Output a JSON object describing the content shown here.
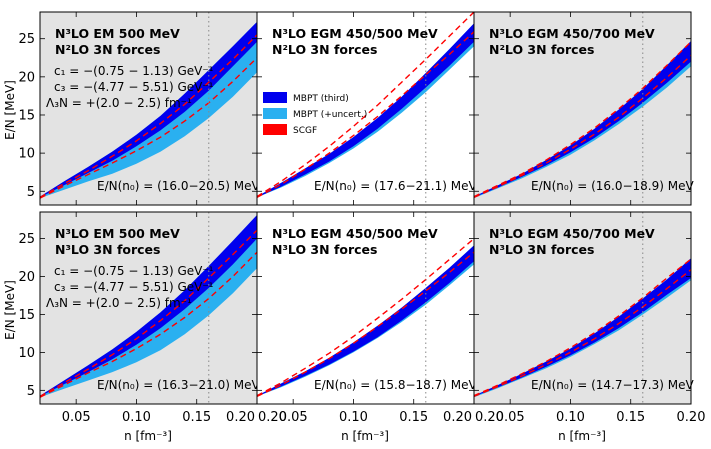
{
  "chart_data": {
    "type": "area",
    "xlabel": "n [fm⁻³]",
    "ylabel": "E/N [MeV]",
    "xlim": [
      0.02,
      0.2
    ],
    "ylim": [
      3.2,
      28.5
    ],
    "x_ticks": [
      "0.05",
      "0.10",
      "0.15",
      "0.20"
    ],
    "x_ticks_first_col": [
      "0.05",
      "0.10",
      "0.15",
      "0.20"
    ],
    "y_ticks": [
      "5",
      "10",
      "15",
      "20",
      "25"
    ],
    "saturation_density_line": 0.16,
    "colors": {
      "mbpt_third": "#0000ee",
      "mbpt_uncert": "#2ab0f0",
      "scgf": "#ff0000",
      "nonfit_bg": "#e3e3e3",
      "fit_bg": "#ffffff"
    },
    "legend": [
      "MBPT (third)",
      "MBPT (+uncert.)",
      "SCGF"
    ],
    "coupling_notes": [
      "c₁ = −(0.75 − 1.13) GeV⁻¹",
      "c₃ = −(4.77 − 5.51) GeV⁻¹",
      "Λ₃N = +(2.0 − 2.5) fm⁻¹"
    ],
    "x": [
      0.02,
      0.04,
      0.06,
      0.08,
      0.1,
      0.12,
      0.14,
      0.16,
      0.18,
      0.2
    ],
    "panels": [
      {
        "title1": "N³LO EM 500 MeV",
        "title2": "N²LO 3N forces",
        "shaded": true,
        "show_couplings": true,
        "show_legend": false,
        "annotation": "E/N(n₀) = (16.0−20.5) MeV",
        "third_lo": [
          4.2,
          5.8,
          7.4,
          9.0,
          10.9,
          13.0,
          15.4,
          18.2,
          21.4,
          24.6
        ],
        "third_hi": [
          4.3,
          6.3,
          8.2,
          10.2,
          12.4,
          14.9,
          17.8,
          20.9,
          24.0,
          27.2
        ],
        "uncert_lo": [
          4.1,
          5.2,
          6.3,
          7.3,
          8.6,
          10.2,
          12.2,
          14.6,
          17.4,
          20.6
        ],
        "uncert_hi": [
          4.3,
          6.3,
          8.2,
          10.2,
          12.4,
          14.9,
          17.8,
          20.9,
          24.0,
          27.2
        ],
        "scgf": [
          [
            4.1,
            5.7,
            7.2,
            8.7,
            10.3,
            12.1,
            14.2,
            16.6,
            19.4,
            22.5
          ],
          [
            4.2,
            6.0,
            7.7,
            9.6,
            11.6,
            13.9,
            16.4,
            19.3,
            22.3,
            25.5
          ]
        ]
      },
      {
        "title1": "N³LO EGM 450/500 MeV",
        "title2": "N²LO 3N forces",
        "shaded": false,
        "show_couplings": false,
        "show_legend": true,
        "annotation": "E/N(n₀) = (17.6−21.1) MeV",
        "third_lo": [
          4.2,
          5.6,
          7.2,
          8.9,
          10.9,
          13.2,
          15.8,
          18.6,
          21.5,
          24.6
        ],
        "third_hi": [
          4.3,
          6.1,
          8.0,
          9.9,
          12.1,
          14.6,
          17.4,
          20.5,
          23.7,
          27.0
        ],
        "uncert_lo": [
          4.2,
          5.5,
          7.0,
          8.7,
          10.6,
          12.8,
          15.3,
          18.0,
          21.0,
          24.0
        ],
        "uncert_hi": [
          4.3,
          6.1,
          8.0,
          9.9,
          12.1,
          14.6,
          17.4,
          20.5,
          23.7,
          27.0
        ],
        "scgf": [
          [
            4.2,
            5.9,
            7.9,
            10.0,
            12.3,
            14.8,
            17.5,
            20.3,
            23.0,
            25.9
          ],
          [
            4.3,
            6.3,
            8.5,
            10.9,
            13.5,
            16.3,
            19.3,
            22.3,
            25.4,
            28.5
          ]
        ]
      },
      {
        "title1": "N³LO EGM 450/700 MeV",
        "title2": "N²LO 3N forces",
        "shaded": true,
        "show_couplings": false,
        "show_legend": false,
        "annotation": "E/N(n₀) = (16.0−18.9) MeV",
        "third_lo": [
          4.2,
          5.5,
          6.9,
          8.4,
          10.1,
          12.0,
          14.2,
          16.6,
          19.2,
          22.0
        ],
        "third_hi": [
          4.3,
          5.8,
          7.3,
          9.1,
          11.0,
          13.2,
          15.7,
          18.4,
          21.5,
          24.7
        ],
        "uncert_lo": [
          4.1,
          5.4,
          6.7,
          8.2,
          9.8,
          11.7,
          13.8,
          16.1,
          18.6,
          21.4
        ],
        "uncert_hi": [
          4.3,
          5.8,
          7.3,
          9.1,
          11.0,
          13.2,
          15.7,
          18.4,
          21.5,
          24.7
        ],
        "scgf": [
          [
            4.2,
            5.6,
            7.1,
            8.7,
            10.5,
            12.5,
            14.7,
            17.2,
            19.9,
            22.8
          ],
          [
            4.3,
            5.8,
            7.3,
            9.1,
            11.1,
            13.3,
            15.8,
            18.5,
            21.5,
            24.6
          ]
        ]
      },
      {
        "title1": "N³LO EM 500 MeV",
        "title2": "N³LO 3N forces",
        "shaded": true,
        "show_couplings": true,
        "show_legend": false,
        "annotation": "E/N(n₀) = (16.3−21.0) MeV",
        "third_lo": [
          4.2,
          5.8,
          7.4,
          9.1,
          11.0,
          13.2,
          15.7,
          18.5,
          21.6,
          25.0
        ],
        "third_hi": [
          4.3,
          6.3,
          8.3,
          10.4,
          12.7,
          15.3,
          18.2,
          21.4,
          24.7,
          28.1
        ],
        "uncert_lo": [
          4.1,
          5.2,
          6.3,
          7.4,
          8.7,
          10.3,
          12.4,
          14.9,
          17.8,
          21.1
        ],
        "uncert_hi": [
          4.3,
          6.3,
          8.3,
          10.4,
          12.7,
          15.3,
          18.2,
          21.4,
          24.7,
          28.1
        ],
        "scgf": [
          [
            4.1,
            5.7,
            7.3,
            8.8,
            10.5,
            12.4,
            14.6,
            17.1,
            20.0,
            23.2
          ],
          [
            4.2,
            6.0,
            7.8,
            9.7,
            11.8,
            14.2,
            16.8,
            19.8,
            22.9,
            26.1
          ]
        ]
      },
      {
        "title1": "N³LO EGM 450/500 MeV",
        "title2": "N³LO 3N forces",
        "shaded": false,
        "show_couplings": false,
        "show_legend": false,
        "annotation": "E/N(n₀) = (15.8−18.7) MeV",
        "third_lo": [
          4.2,
          5.5,
          6.9,
          8.4,
          10.1,
          12.0,
          14.2,
          16.6,
          19.2,
          22.0
        ],
        "third_hi": [
          4.3,
          5.9,
          7.5,
          9.3,
          11.3,
          13.5,
          15.9,
          18.5,
          21.2,
          24.1
        ],
        "uncert_lo": [
          4.2,
          5.4,
          6.8,
          8.3,
          10.0,
          11.9,
          14.0,
          16.3,
          18.9,
          21.6
        ],
        "uncert_hi": [
          4.3,
          5.9,
          7.5,
          9.3,
          11.3,
          13.5,
          15.9,
          18.5,
          21.2,
          24.1
        ],
        "scgf": [
          [
            4.2,
            5.7,
            7.4,
            9.2,
            11.2,
            13.4,
            15.7,
            18.1,
            20.6,
            23.2
          ],
          [
            4.3,
            6.0,
            7.9,
            9.9,
            12.1,
            14.5,
            17.0,
            19.6,
            22.3,
            25.0
          ]
        ]
      },
      {
        "title1": "N³LO EGM 450/700 MeV",
        "title2": "N³LO 3N forces",
        "shaded": true,
        "show_couplings": false,
        "show_legend": false,
        "annotation": "E/N(n₀) = (14.7−17.3) MeV",
        "third_lo": [
          4.2,
          5.4,
          6.7,
          8.1,
          9.6,
          11.3,
          13.2,
          15.3,
          17.6,
          19.8
        ],
        "third_hi": [
          4.3,
          5.7,
          7.2,
          8.8,
          10.5,
          12.5,
          14.7,
          17.1,
          19.6,
          22.4
        ],
        "uncert_lo": [
          4.1,
          5.3,
          6.6,
          7.9,
          9.4,
          11.1,
          12.9,
          15.0,
          17.2,
          19.5
        ],
        "uncert_hi": [
          4.3,
          5.7,
          7.2,
          8.8,
          10.5,
          12.5,
          14.7,
          17.1,
          19.6,
          22.4
        ],
        "scgf": [
          [
            4.2,
            5.5,
            6.9,
            8.4,
            10.0,
            11.8,
            13.8,
            16.0,
            18.4,
            20.9
          ],
          [
            4.3,
            5.7,
            7.2,
            8.8,
            10.6,
            12.6,
            14.8,
            17.2,
            19.8,
            22.3
          ]
        ]
      }
    ]
  }
}
